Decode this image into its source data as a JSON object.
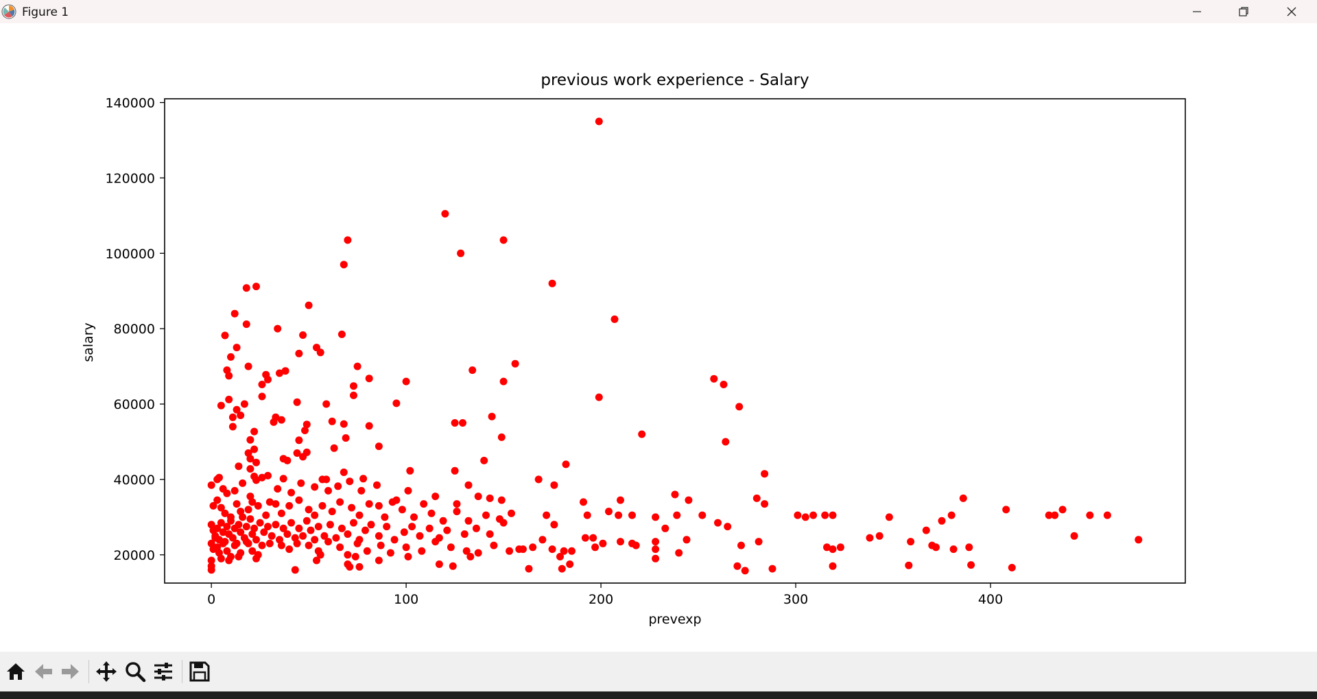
{
  "window": {
    "title": "Figure 1"
  },
  "toolbar": {
    "buttons": [
      {
        "name": "home-button",
        "icon": "home-icon"
      },
      {
        "name": "back-button",
        "icon": "arrow-left-icon"
      },
      {
        "name": "forward-button",
        "icon": "arrow-right-icon"
      },
      {
        "name": "pan-button",
        "icon": "move-icon"
      },
      {
        "name": "zoom-button",
        "icon": "magnifier-icon"
      },
      {
        "name": "configure-subplots-button",
        "icon": "sliders-icon"
      },
      {
        "name": "save-button",
        "icon": "floppy-disk-icon"
      }
    ]
  },
  "chart_data": {
    "type": "scatter",
    "title": "previous work experience - Salary",
    "xlabel": "prevexp",
    "ylabel": "salary",
    "xlim": [
      -24,
      500
    ],
    "ylim": [
      12500,
      141000
    ],
    "xticks": [
      0,
      100,
      200,
      300,
      400
    ],
    "yticks": [
      20000,
      40000,
      60000,
      80000,
      100000,
      120000,
      140000
    ],
    "grid": false,
    "color": "#ff0000",
    "points": [
      [
        199,
        135000
      ],
      [
        120,
        110500
      ],
      [
        150,
        103500
      ],
      [
        70,
        103500
      ],
      [
        128,
        100000
      ],
      [
        68,
        97000
      ],
      [
        175,
        92000
      ],
      [
        18,
        90800
      ],
      [
        23,
        91200
      ],
      [
        207,
        82500
      ],
      [
        50,
        86200
      ],
      [
        12,
        84000
      ],
      [
        18,
        81200
      ],
      [
        7,
        78200
      ],
      [
        34,
        80000
      ],
      [
        47,
        78300
      ],
      [
        67,
        78500
      ],
      [
        13,
        75000
      ],
      [
        54,
        75000
      ],
      [
        56,
        73700
      ],
      [
        45,
        73400
      ],
      [
        10,
        72500
      ],
      [
        258,
        66700
      ],
      [
        263,
        65200
      ],
      [
        8,
        69000
      ],
      [
        9,
        67500
      ],
      [
        19,
        70000
      ],
      [
        28,
        67800
      ],
      [
        29,
        66500
      ],
      [
        35,
        68200
      ],
      [
        38,
        68800
      ],
      [
        75,
        70000
      ],
      [
        81,
        66800
      ],
      [
        100,
        66000
      ],
      [
        134,
        69000
      ],
      [
        150,
        66000
      ],
      [
        156,
        70700
      ],
      [
        26,
        65200
      ],
      [
        73,
        64800
      ],
      [
        73,
        62300
      ],
      [
        26,
        62000
      ],
      [
        199,
        61800
      ],
      [
        271,
        59300
      ],
      [
        9,
        61200
      ],
      [
        17,
        60000
      ],
      [
        5,
        59600
      ],
      [
        13,
        58500
      ],
      [
        15,
        57000
      ],
      [
        11,
        56500
      ],
      [
        11,
        54000
      ],
      [
        22,
        52700
      ],
      [
        20,
        50500
      ],
      [
        33,
        56500
      ],
      [
        36,
        55800
      ],
      [
        32,
        55200
      ],
      [
        44,
        60500
      ],
      [
        49,
        54600
      ],
      [
        48,
        53000
      ],
      [
        45,
        50400
      ],
      [
        49,
        47200
      ],
      [
        59,
        60000
      ],
      [
        62,
        55400
      ],
      [
        68,
        54700
      ],
      [
        69,
        51000
      ],
      [
        81,
        54200
      ],
      [
        95,
        60200
      ],
      [
        125,
        55000
      ],
      [
        129,
        55000
      ],
      [
        144,
        56700
      ],
      [
        149,
        51200
      ],
      [
        264,
        50000
      ],
      [
        221,
        52000
      ],
      [
        86,
        48800
      ],
      [
        19,
        47000
      ],
      [
        22,
        48000
      ],
      [
        20,
        45500
      ],
      [
        23,
        44500
      ],
      [
        14,
        43500
      ],
      [
        20,
        42800
      ],
      [
        29,
        41000
      ],
      [
        23,
        39800
      ],
      [
        37,
        45500
      ],
      [
        39,
        45000
      ],
      [
        44,
        47000
      ],
      [
        47,
        46000
      ],
      [
        59,
        40000
      ],
      [
        63,
        48300
      ],
      [
        68,
        41900
      ],
      [
        78,
        40200
      ],
      [
        102,
        42300
      ],
      [
        125,
        42300
      ],
      [
        140,
        45000
      ],
      [
        182,
        44000
      ],
      [
        284,
        41500
      ],
      [
        0,
        38500
      ],
      [
        3,
        40000
      ],
      [
        4,
        40500
      ],
      [
        6,
        37500
      ],
      [
        8,
        36300
      ],
      [
        12,
        37000
      ],
      [
        16,
        39000
      ],
      [
        20,
        35500
      ],
      [
        26,
        40500
      ],
      [
        22,
        40800
      ],
      [
        34,
        37500
      ],
      [
        37,
        40200
      ],
      [
        41,
        36500
      ],
      [
        46,
        39000
      ],
      [
        53,
        38000
      ],
      [
        57,
        40000
      ],
      [
        60,
        37000
      ],
      [
        65,
        38200
      ],
      [
        71,
        39500
      ],
      [
        77,
        37000
      ],
      [
        85,
        38500
      ],
      [
        95,
        34500
      ],
      [
        101,
        37000
      ],
      [
        115,
        35500
      ],
      [
        126,
        33500
      ],
      [
        132,
        38500
      ],
      [
        137,
        35500
      ],
      [
        143,
        35000
      ],
      [
        149,
        34500
      ],
      [
        168,
        40000
      ],
      [
        176,
        38500
      ],
      [
        191,
        34000
      ],
      [
        210,
        34500
      ],
      [
        238,
        36000
      ],
      [
        245,
        34500
      ],
      [
        280,
        35000
      ],
      [
        284,
        33500
      ],
      [
        386,
        35000
      ],
      [
        1,
        33000
      ],
      [
        3,
        34500
      ],
      [
        5,
        32500
      ],
      [
        7,
        31000
      ],
      [
        10,
        30000
      ],
      [
        13,
        33500
      ],
      [
        15,
        31500
      ],
      [
        19,
        32000
      ],
      [
        21,
        34000
      ],
      [
        24,
        33000
      ],
      [
        28,
        30500
      ],
      [
        30,
        34000
      ],
      [
        33,
        33500
      ],
      [
        36,
        31000
      ],
      [
        40,
        33000
      ],
      [
        45,
        34500
      ],
      [
        50,
        32000
      ],
      [
        53,
        30500
      ],
      [
        57,
        33000
      ],
      [
        62,
        31500
      ],
      [
        66,
        34000
      ],
      [
        72,
        32500
      ],
      [
        76,
        30500
      ],
      [
        81,
        33500
      ],
      [
        86,
        33000
      ],
      [
        89,
        30000
      ],
      [
        93,
        34000
      ],
      [
        98,
        32000
      ],
      [
        104,
        30000
      ],
      [
        109,
        33500
      ],
      [
        113,
        31000
      ],
      [
        119,
        29000
      ],
      [
        126,
        31500
      ],
      [
        132,
        29000
      ],
      [
        141,
        30500
      ],
      [
        148,
        29500
      ],
      [
        154,
        31000
      ],
      [
        172,
        30500
      ],
      [
        176,
        28000
      ],
      [
        193,
        30500
      ],
      [
        204,
        31500
      ],
      [
        209,
        30500
      ],
      [
        216,
        30500
      ],
      [
        228,
        30000
      ],
      [
        239,
        30500
      ],
      [
        252,
        30500
      ],
      [
        260,
        28500
      ],
      [
        265,
        27500
      ],
      [
        301,
        30500
      ],
      [
        305,
        30000
      ],
      [
        309,
        30500
      ],
      [
        315,
        30500
      ],
      [
        319,
        30500
      ],
      [
        348,
        30000
      ],
      [
        375,
        29000
      ],
      [
        380,
        30500
      ],
      [
        408,
        32000
      ],
      [
        430,
        30500
      ],
      [
        433,
        30500
      ],
      [
        437,
        32000
      ],
      [
        451,
        30500
      ],
      [
        460,
        30500
      ],
      [
        0,
        28000
      ],
      [
        1,
        26500
      ],
      [
        2,
        25000
      ],
      [
        3,
        27000
      ],
      [
        4,
        24000
      ],
      [
        5,
        28500
      ],
      [
        6,
        26000
      ],
      [
        7,
        23500
      ],
      [
        8,
        27500
      ],
      [
        9,
        25500
      ],
      [
        10,
        29000
      ],
      [
        11,
        24500
      ],
      [
        12,
        27000
      ],
      [
        13,
        23000
      ],
      [
        14,
        28000
      ],
      [
        15,
        26000
      ],
      [
        16,
        30000
      ],
      [
        17,
        24500
      ],
      [
        18,
        27500
      ],
      [
        19,
        23000
      ],
      [
        20,
        29500
      ],
      [
        21,
        25500
      ],
      [
        22,
        27000
      ],
      [
        23,
        24000
      ],
      [
        25,
        28500
      ],
      [
        27,
        26000
      ],
      [
        29,
        27500
      ],
      [
        31,
        25000
      ],
      [
        33,
        28000
      ],
      [
        35,
        24000
      ],
      [
        37,
        27000
      ],
      [
        39,
        25500
      ],
      [
        41,
        28500
      ],
      [
        43,
        24500
      ],
      [
        45,
        27000
      ],
      [
        47,
        25000
      ],
      [
        49,
        29000
      ],
      [
        51,
        26500
      ],
      [
        53,
        24000
      ],
      [
        55,
        27500
      ],
      [
        58,
        25000
      ],
      [
        61,
        28000
      ],
      [
        64,
        24500
      ],
      [
        67,
        27000
      ],
      [
        70,
        25500
      ],
      [
        73,
        28500
      ],
      [
        76,
        24000
      ],
      [
        79,
        26500
      ],
      [
        82,
        28000
      ],
      [
        86,
        25000
      ],
      [
        90,
        27500
      ],
      [
        94,
        24000
      ],
      [
        99,
        26000
      ],
      [
        103,
        27500
      ],
      [
        107,
        25000
      ],
      [
        112,
        27000
      ],
      [
        117,
        24500
      ],
      [
        121,
        26500
      ],
      [
        130,
        25500
      ],
      [
        136,
        27000
      ],
      [
        143,
        25500
      ],
      [
        150,
        28500
      ],
      [
        160,
        21500
      ],
      [
        170,
        24000
      ],
      [
        181,
        21000
      ],
      [
        192,
        24500
      ],
      [
        196,
        24500
      ],
      [
        228,
        23500
      ],
      [
        233,
        27000
      ],
      [
        244,
        24000
      ],
      [
        272,
        22500
      ],
      [
        281,
        23500
      ],
      [
        338,
        24500
      ],
      [
        343,
        25000
      ],
      [
        359,
        23500
      ],
      [
        367,
        26500
      ],
      [
        370,
        22500
      ],
      [
        389,
        22000
      ],
      [
        443,
        25000
      ],
      [
        476,
        24000
      ],
      [
        0,
        23000
      ],
      [
        1,
        21500
      ],
      [
        2,
        24500
      ],
      [
        3,
        22000
      ],
      [
        4,
        20500
      ],
      [
        6,
        23000
      ],
      [
        8,
        21000
      ],
      [
        10,
        19500
      ],
      [
        12,
        22500
      ],
      [
        15,
        20500
      ],
      [
        18,
        23500
      ],
      [
        21,
        21000
      ],
      [
        24,
        20000
      ],
      [
        26,
        22500
      ],
      [
        30,
        23000
      ],
      [
        36,
        22500
      ],
      [
        40,
        21500
      ],
      [
        44,
        23000
      ],
      [
        50,
        22500
      ],
      [
        55,
        21000
      ],
      [
        60,
        23500
      ],
      [
        66,
        22000
      ],
      [
        70,
        20000
      ],
      [
        75,
        23000
      ],
      [
        80,
        21000
      ],
      [
        87,
        22500
      ],
      [
        92,
        20500
      ],
      [
        100,
        22000
      ],
      [
        108,
        21000
      ],
      [
        115,
        23500
      ],
      [
        123,
        22000
      ],
      [
        131,
        21000
      ],
      [
        137,
        20500
      ],
      [
        145,
        22500
      ],
      [
        153,
        21000
      ],
      [
        158,
        21500
      ],
      [
        165,
        22000
      ],
      [
        175,
        21500
      ],
      [
        185,
        21000
      ],
      [
        197,
        22000
      ],
      [
        201,
        23000
      ],
      [
        210,
        23500
      ],
      [
        216,
        23000
      ],
      [
        218,
        22500
      ],
      [
        228,
        21500
      ],
      [
        240,
        20500
      ],
      [
        316,
        22000
      ],
      [
        319,
        21500
      ],
      [
        323,
        22000
      ],
      [
        372,
        22000
      ],
      [
        381,
        21500
      ],
      [
        0,
        18500
      ],
      [
        0,
        17000
      ],
      [
        0,
        16000
      ],
      [
        5,
        19000
      ],
      [
        9,
        18500
      ],
      [
        14,
        19500
      ],
      [
        23,
        19000
      ],
      [
        43,
        16000
      ],
      [
        54,
        18500
      ],
      [
        56,
        20000
      ],
      [
        70,
        17500
      ],
      [
        71,
        16800
      ],
      [
        74,
        19500
      ],
      [
        76,
        16800
      ],
      [
        86,
        18500
      ],
      [
        101,
        19500
      ],
      [
        117,
        17500
      ],
      [
        124,
        17000
      ],
      [
        133,
        19500
      ],
      [
        163,
        16300
      ],
      [
        179,
        19500
      ],
      [
        180,
        16300
      ],
      [
        184,
        17500
      ],
      [
        228,
        19000
      ],
      [
        270,
        17000
      ],
      [
        274,
        15800
      ],
      [
        288,
        16300
      ],
      [
        319,
        17000
      ],
      [
        358,
        17200
      ],
      [
        390,
        17300
      ],
      [
        411,
        16600
      ]
    ]
  }
}
